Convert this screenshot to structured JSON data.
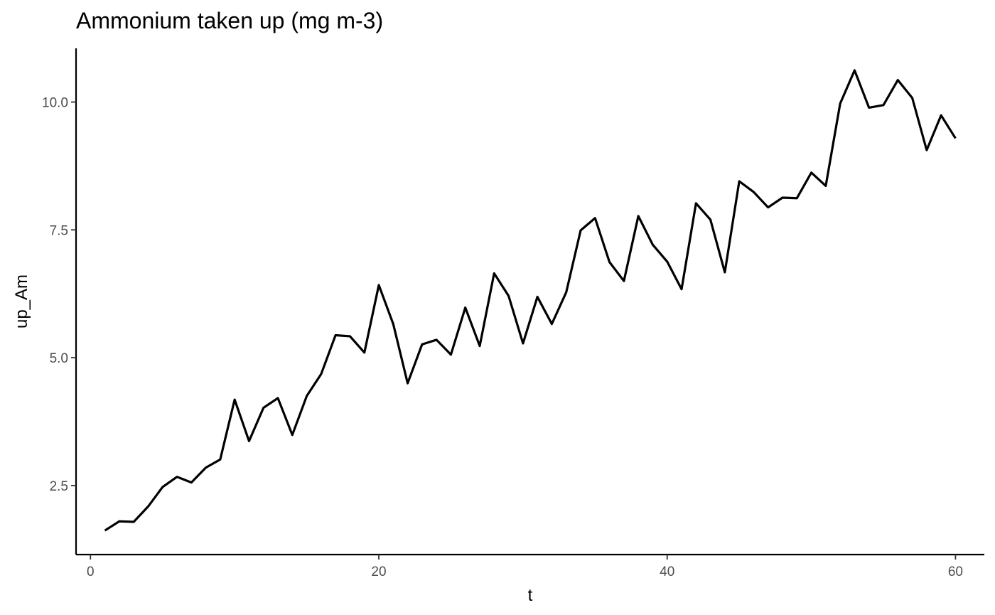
{
  "chart_data": {
    "type": "line",
    "title": "Ammonium taken up (mg m-3)",
    "xlabel": "t",
    "ylabel": "up_Am",
    "xlim": [
      -1,
      62
    ],
    "ylim": [
      1.15,
      11.05
    ],
    "x_ticks": [
      0,
      20,
      40,
      60
    ],
    "y_ticks": [
      2.5,
      5.0,
      7.5,
      10.0
    ],
    "x_tick_labels": [
      "0",
      "20",
      "40",
      "60"
    ],
    "y_tick_labels": [
      "2.5",
      "5.0",
      "7.5",
      "10.0"
    ],
    "grid": false,
    "line_color": "#000000",
    "series": [
      {
        "x": [
          1,
          2,
          3,
          4,
          5,
          6,
          7,
          8,
          9,
          10,
          11,
          12,
          13,
          14,
          15,
          16,
          17,
          18,
          19,
          20,
          21,
          22,
          23,
          24,
          25,
          26,
          27,
          28,
          29,
          30,
          31,
          32,
          33,
          34,
          35,
          36,
          37,
          38,
          39,
          40,
          41,
          42,
          43,
          44,
          45,
          46,
          47,
          48,
          49,
          50,
          51,
          52,
          53,
          54,
          55,
          56,
          57,
          58,
          59,
          60
        ],
        "values": [
          1.62,
          1.8,
          1.79,
          2.09,
          2.47,
          2.67,
          2.56,
          2.85,
          3.01,
          4.18,
          3.37,
          4.02,
          4.21,
          3.49,
          4.25,
          4.68,
          5.44,
          5.42,
          5.1,
          6.42,
          5.66,
          4.5,
          5.26,
          5.35,
          5.06,
          5.98,
          5.23,
          6.65,
          6.21,
          5.28,
          6.19,
          5.66,
          6.28,
          7.49,
          7.73,
          6.87,
          6.5,
          7.77,
          7.21,
          6.88,
          6.34,
          8.02,
          7.7,
          6.67,
          8.45,
          8.24,
          7.94,
          8.13,
          8.12,
          8.62,
          8.36,
          9.97,
          10.62,
          9.89,
          9.94,
          10.43,
          10.08,
          9.06,
          9.74,
          9.29
        ]
      }
    ]
  }
}
